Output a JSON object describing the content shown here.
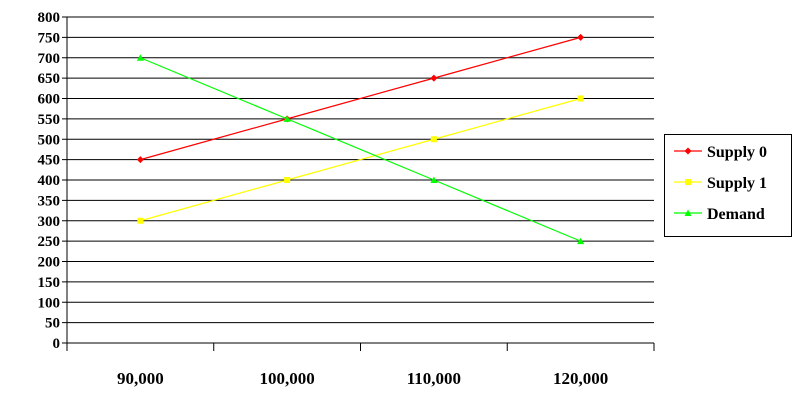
{
  "chart_data": {
    "type": "line",
    "categories": [
      "90,000",
      "100,000",
      "110,000",
      "120,000"
    ],
    "y_ticks": [
      "0",
      "50",
      "100",
      "150",
      "200",
      "250",
      "300",
      "350",
      "400",
      "450",
      "500",
      "550",
      "600",
      "650",
      "700",
      "750",
      "800"
    ],
    "ylim": [
      0,
      800
    ],
    "y_step": 50,
    "grid": true,
    "legend_position": "right",
    "series": [
      {
        "name": "Supply 0",
        "values": [
          450,
          550,
          650,
          750
        ],
        "color": "#ff0000",
        "marker": "diamond"
      },
      {
        "name": "Supply 1",
        "values": [
          300,
          400,
          500,
          600
        ],
        "color": "#ffff00",
        "marker": "square"
      },
      {
        "name": "Demand",
        "values": [
          700,
          550,
          400,
          250
        ],
        "color": "#00ff00",
        "marker": "triangle"
      }
    ]
  }
}
